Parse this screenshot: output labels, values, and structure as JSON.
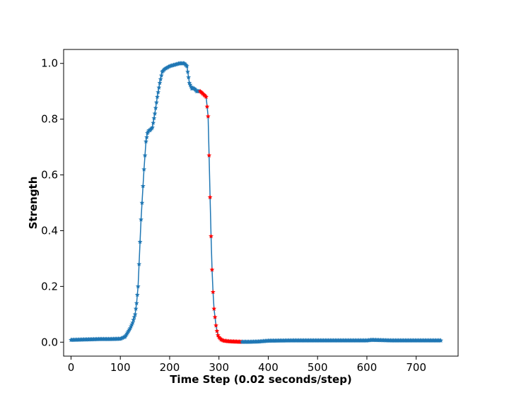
{
  "chart_data": {
    "type": "line",
    "title": "",
    "xlabel": "Time Step (0.02 seconds/step)",
    "ylabel": "Strength",
    "xlim": [
      -15,
      785
    ],
    "ylim": [
      -0.05,
      1.05
    ],
    "xticks": [
      0,
      100,
      200,
      300,
      400,
      500,
      600,
      700
    ],
    "yticks": [
      0.0,
      0.2,
      0.4,
      0.6,
      0.8,
      1.0
    ],
    "xtick_labels": [
      "0",
      "100",
      "200",
      "300",
      "400",
      "500",
      "600",
      "700"
    ],
    "ytick_labels": [
      "0.0",
      "0.2",
      "0.4",
      "0.6",
      "0.8",
      "1.0"
    ],
    "grid": false,
    "legend": "none",
    "line_color": "#1f77b4",
    "marker": "star",
    "marker_colors": {
      "normal": "#1f77b4",
      "highlight": "#ff0000"
    },
    "highlight_range": [
      262,
      345
    ],
    "series": [
      {
        "x": [
          0,
          20,
          40,
          60,
          80,
          100,
          110,
          115,
          120,
          125,
          130,
          133,
          136,
          138,
          140,
          142,
          144,
          146,
          148,
          150,
          152,
          155,
          158,
          160,
          165,
          170,
          175,
          180,
          185,
          190,
          200,
          210,
          220,
          230,
          235,
          240,
          245,
          250,
          255,
          262,
          268,
          274,
          278,
          280,
          282,
          284,
          286,
          288,
          290,
          292,
          294,
          296,
          298,
          300,
          304,
          310,
          320,
          330,
          345,
          360,
          380,
          400,
          450,
          500,
          550,
          600,
          610,
          650,
          700,
          750
        ],
        "y": [
          0.008,
          0.009,
          0.01,
          0.011,
          0.011,
          0.012,
          0.02,
          0.035,
          0.05,
          0.07,
          0.1,
          0.14,
          0.2,
          0.28,
          0.36,
          0.44,
          0.5,
          0.56,
          0.62,
          0.67,
          0.72,
          0.75,
          0.76,
          0.76,
          0.77,
          0.82,
          0.88,
          0.93,
          0.97,
          0.98,
          0.99,
          0.995,
          1.0,
          1.0,
          0.99,
          0.93,
          0.91,
          0.91,
          0.9,
          0.9,
          0.89,
          0.88,
          0.81,
          0.67,
          0.52,
          0.38,
          0.26,
          0.18,
          0.12,
          0.09,
          0.06,
          0.04,
          0.025,
          0.018,
          0.01,
          0.005,
          0.003,
          0.002,
          0.001,
          0.001,
          0.002,
          0.005,
          0.006,
          0.006,
          0.006,
          0.006,
          0.008,
          0.006,
          0.006,
          0.006
        ]
      }
    ]
  }
}
